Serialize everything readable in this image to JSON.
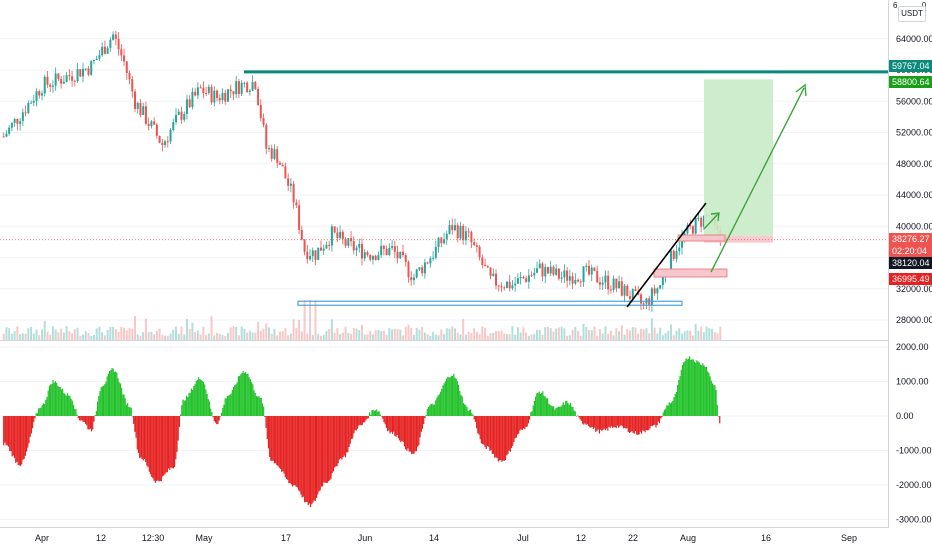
{
  "currency_label": "USDT",
  "top_partial_label": "6",
  "top_partial_label_right": "0",
  "colors": {
    "up": "#26a69a",
    "down": "#ef5350",
    "resistance_line": "#0b8a7a",
    "support_box": "#4aa3df",
    "target_zone": "#c8ebc7",
    "stop_zone": "#f7c5cc",
    "hist_up": "#22c22a",
    "hist_down": "#e52121",
    "trend_line": "#000000",
    "projection_arrow": "#3aa63a"
  },
  "price_axis": {
    "labels": [
      "64000.00",
      "60000.00",
      "56000.00",
      "52000.00",
      "48000.00",
      "44000.00",
      "40000.00",
      "36000.00",
      "32000.00",
      "28000.00"
    ]
  },
  "indicator_axis": {
    "labels": [
      "2000.00",
      "1000.00",
      "0.00",
      "-1000.00",
      "-2000.00",
      "-3000.00"
    ]
  },
  "time_axis": {
    "labels": [
      "Apr",
      "12",
      "12:30",
      "May",
      "17",
      "Jun",
      "14",
      "Jul",
      "12",
      "22",
      "Aug",
      "16",
      "Sep"
    ]
  },
  "price_badges": [
    {
      "text": "59767.04",
      "color": "#0b8a7a"
    },
    {
      "text": "58800.64",
      "color": "#1a9e1a"
    },
    {
      "text": "38276.27",
      "color": "#ef5350"
    },
    {
      "text": "02:20:04",
      "color": "#ef5350"
    },
    {
      "text": "38120.04",
      "color": "#131722"
    },
    {
      "text": "36995.49",
      "color": "#e52121"
    }
  ],
  "chart_data": [
    {
      "type": "candlestick",
      "symbol_currency": "USDT",
      "y_range": [
        26000,
        67000
      ],
      "y_ticks": [
        28000,
        32000,
        36000,
        40000,
        44000,
        48000,
        52000,
        56000,
        60000,
        64000
      ],
      "x_ticks": [
        "Apr",
        "12",
        "12:30",
        "May",
        "17",
        "Jun",
        "14",
        "Jul",
        "12",
        "22",
        "Aug",
        "16",
        "Sep"
      ],
      "price_path": [
        {
          "t": "Mar 25",
          "price": 51500
        },
        {
          "t": "Apr 01",
          "price": 58000
        },
        {
          "t": "Apr 05",
          "price": 59000
        },
        {
          "t": "Apr 10",
          "price": 60500
        },
        {
          "t": "Apr 14",
          "price": 64500
        },
        {
          "t": "Apr 16",
          "price": 61000
        },
        {
          "t": "Apr 18",
          "price": 56000
        },
        {
          "t": "Apr 23",
          "price": 50500
        },
        {
          "t": "Apr 26",
          "price": 54000
        },
        {
          "t": "Apr 30",
          "price": 57500
        },
        {
          "t": "May 03",
          "price": 56500
        },
        {
          "t": "May 07",
          "price": 58000
        },
        {
          "t": "May 10",
          "price": 58500
        },
        {
          "t": "May 12",
          "price": 50000
        },
        {
          "t": "May 14",
          "price": 49000
        },
        {
          "t": "May 17",
          "price": 43500
        },
        {
          "t": "May 19",
          "price": 37000
        },
        {
          "t": "May 21",
          "price": 36500
        },
        {
          "t": "May 24",
          "price": 39000
        },
        {
          "t": "May 27",
          "price": 37500
        },
        {
          "t": "May 31",
          "price": 36500
        },
        {
          "t": "Jun 04",
          "price": 37000
        },
        {
          "t": "Jun 08",
          "price": 33500
        },
        {
          "t": "Jun 12",
          "price": 37000
        },
        {
          "t": "Jun 15",
          "price": 40000
        },
        {
          "t": "Jun 18",
          "price": 38500
        },
        {
          "t": "Jun 22",
          "price": 33000
        },
        {
          "t": "Jun 26",
          "price": 32500
        },
        {
          "t": "Jul 01",
          "price": 34500
        },
        {
          "t": "Jul 05",
          "price": 33500
        },
        {
          "t": "Jul 09",
          "price": 34000
        },
        {
          "t": "Jul 13",
          "price": 33000
        },
        {
          "t": "Jul 17",
          "price": 31500
        },
        {
          "t": "Jul 20",
          "price": 29800
        },
        {
          "t": "Jul 23",
          "price": 32500
        },
        {
          "t": "Jul 26",
          "price": 37500
        },
        {
          "t": "Jul 29",
          "price": 40000
        },
        {
          "t": "Aug 01",
          "price": 41500
        },
        {
          "t": "Aug 02",
          "price": 39500
        },
        {
          "t": "Aug 03",
          "price": 38276.27
        }
      ],
      "horizontal_lines": [
        {
          "label": "59767.04",
          "price": 59767.04
        }
      ],
      "boxes": [
        {
          "name": "support-zone",
          "price_low": 29900,
          "price_high": 30400
        },
        {
          "name": "target-zone",
          "price_low": 38800,
          "price_high": 58800.64
        },
        {
          "name": "stop-zone",
          "price_low": 37900,
          "price_high": 38800
        }
      ],
      "current_price": 38276.27,
      "countdown": "02:20:04"
    },
    {
      "type": "bar",
      "indicator": "momentum histogram",
      "y_range": [
        -3200,
        2200
      ],
      "y_ticks": [
        2000,
        1000,
        0,
        -1000,
        -2000,
        -3000
      ],
      "x_ticks": [
        "Apr",
        "12",
        "12:30",
        "May",
        "17",
        "Jun",
        "14",
        "Jul",
        "12",
        "22",
        "Aug",
        "16",
        "Sep"
      ],
      "profile": [
        {
          "t": "Mar 25",
          "value": -800
        },
        {
          "t": "Mar 28",
          "value": -1400
        },
        {
          "t": "Apr 01",
          "value": 300
        },
        {
          "t": "Apr 03",
          "value": 1000
        },
        {
          "t": "Apr 06",
          "value": 600
        },
        {
          "t": "Apr 08",
          "value": -100
        },
        {
          "t": "Apr 10",
          "value": -400
        },
        {
          "t": "Apr 12",
          "value": 900
        },
        {
          "t": "Apr 14",
          "value": 1350
        },
        {
          "t": "Apr 17",
          "value": 300
        },
        {
          "t": "Apr 19",
          "value": -1200
        },
        {
          "t": "Apr 22",
          "value": -1900
        },
        {
          "t": "Apr 25",
          "value": -1500
        },
        {
          "t": "Apr 27",
          "value": 500
        },
        {
          "t": "Apr 30",
          "value": 1100
        },
        {
          "t": "May 03",
          "value": -200
        },
        {
          "t": "May 05",
          "value": 600
        },
        {
          "t": "May 08",
          "value": 1300
        },
        {
          "t": "May 11",
          "value": 500
        },
        {
          "t": "May 13",
          "value": -1300
        },
        {
          "t": "May 17",
          "value": -2000
        },
        {
          "t": "May 20",
          "value": -2600
        },
        {
          "t": "May 23",
          "value": -1900
        },
        {
          "t": "May 26",
          "value": -1200
        },
        {
          "t": "May 29",
          "value": -300
        },
        {
          "t": "Jun 01",
          "value": 200
        },
        {
          "t": "Jun 04",
          "value": -500
        },
        {
          "t": "Jun 08",
          "value": -1100
        },
        {
          "t": "Jun 11",
          "value": 300
        },
        {
          "t": "Jun 15",
          "value": 1200
        },
        {
          "t": "Jun 18",
          "value": 200
        },
        {
          "t": "Jun 21",
          "value": -900
        },
        {
          "t": "Jun 24",
          "value": -1300
        },
        {
          "t": "Jun 28",
          "value": -400
        },
        {
          "t": "Jul 01",
          "value": 700
        },
        {
          "t": "Jul 04",
          "value": 200
        },
        {
          "t": "Jul 06",
          "value": 400
        },
        {
          "t": "Jul 09",
          "value": -200
        },
        {
          "t": "Jul 12",
          "value": -450
        },
        {
          "t": "Jul 15",
          "value": -300
        },
        {
          "t": "Jul 19",
          "value": -500
        },
        {
          "t": "Jul 22",
          "value": -300
        },
        {
          "t": "Jul 25",
          "value": 400
        },
        {
          "t": "Jul 28",
          "value": 1700
        },
        {
          "t": "Jul 31",
          "value": 1500
        },
        {
          "t": "Aug 02",
          "value": 900
        },
        {
          "t": "Aug 03",
          "value": -300
        }
      ]
    }
  ]
}
